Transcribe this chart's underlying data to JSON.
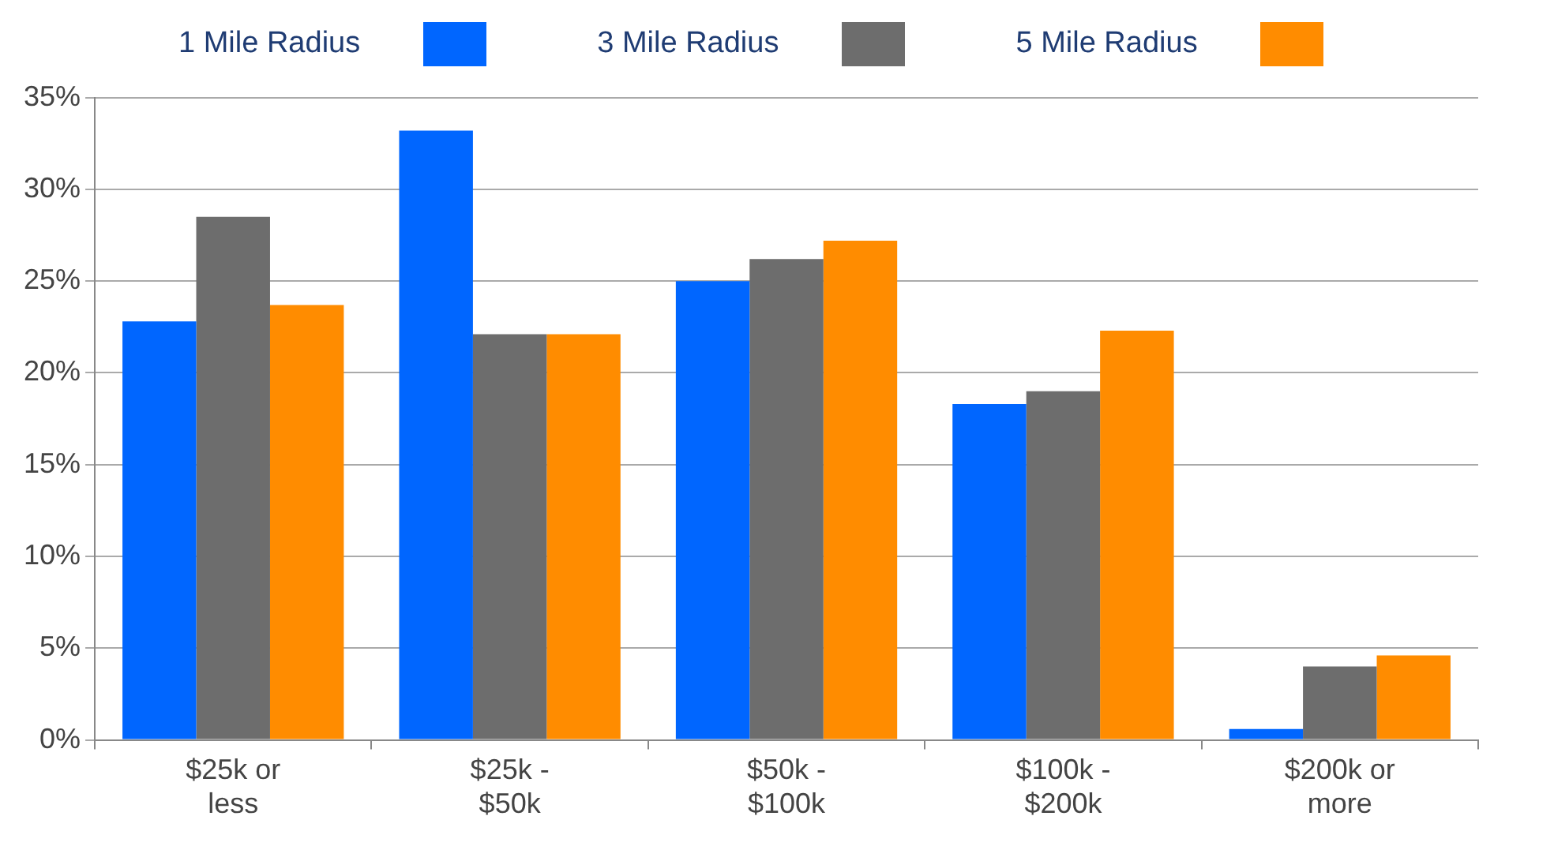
{
  "chart_data": {
    "type": "bar",
    "categories": [
      "$25k or less",
      "$25k - $50k",
      "$50k - $100k",
      "$100k - $200k",
      "$200k or more"
    ],
    "series": [
      {
        "name": "1 Mile Radius",
        "color": "#0066ff",
        "values": [
          22.8,
          33.2,
          25.0,
          18.3,
          0.6
        ]
      },
      {
        "name": "3 Mile Radius",
        "color": "#6d6d6d",
        "values": [
          28.5,
          22.1,
          26.2,
          19.0,
          4.0
        ]
      },
      {
        "name": "5 Mile Radius",
        "color": "#ff8c00",
        "values": [
          23.7,
          22.1,
          27.2,
          22.3,
          4.6
        ]
      }
    ],
    "ylim": [
      0,
      35
    ],
    "yticks": [
      {
        "value": 0,
        "label": "0%"
      },
      {
        "value": 5,
        "label": "5%"
      },
      {
        "value": 10,
        "label": "10%"
      },
      {
        "value": 15,
        "label": "15%"
      },
      {
        "value": 20,
        "label": "20%"
      },
      {
        "value": 25,
        "label": "25%"
      },
      {
        "value": 30,
        "label": "30%"
      },
      {
        "value": 35,
        "label": "35%"
      }
    ],
    "grid": "y",
    "legend": "top"
  }
}
